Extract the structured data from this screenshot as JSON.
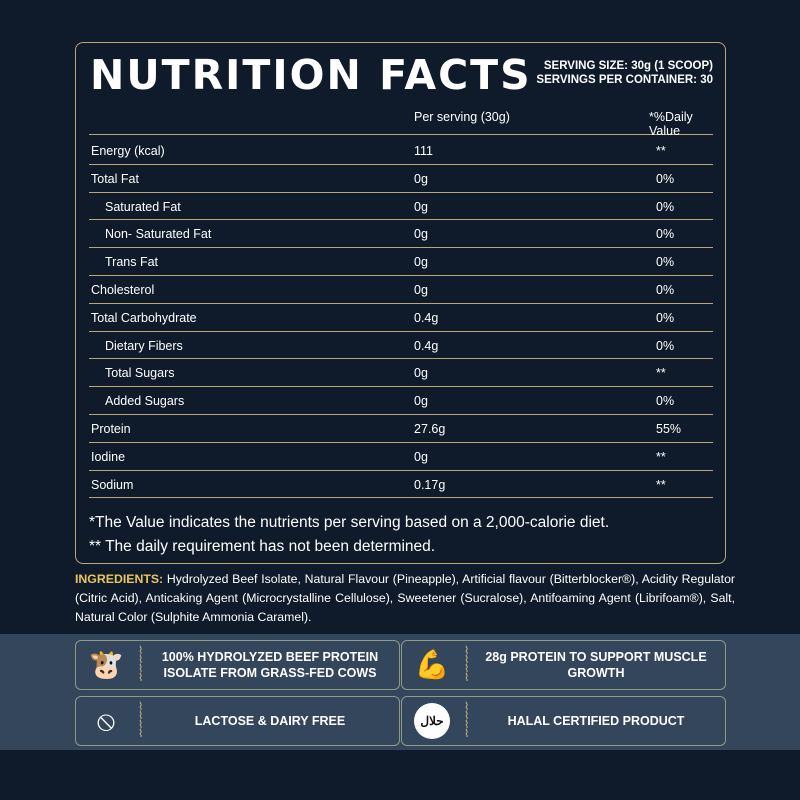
{
  "title": "NUTRITION FACTS",
  "serving_size": "SERVING SIZE: 30g (1 SCOOP)",
  "servings_per_container": "SERVINGS PER CONTAINER: 30",
  "headers": {
    "per_serving": "Per serving (30g)",
    "daily_value": "*%Daily Value"
  },
  "rows": [
    {
      "name": "Energy (kcal)",
      "amount": "111",
      "dv": "**"
    },
    {
      "name": "Total Fat",
      "amount": "0g",
      "dv": "0%"
    },
    {
      "name": "Saturated Fat",
      "amount": "0g",
      "dv": "0%"
    },
    {
      "name": "Non- Saturated Fat",
      "amount": "0g",
      "dv": "0%"
    },
    {
      "name": "Trans Fat",
      "amount": "0g",
      "dv": "0%"
    },
    {
      "name": "Cholesterol",
      "amount": "0g",
      "dv": "0%"
    },
    {
      "name": "Total Carbohydrate",
      "amount": "0.4g",
      "dv": "0%"
    },
    {
      "name": "Dietary Fibers",
      "amount": "0.4g",
      "dv": "0%"
    },
    {
      "name": "Total Sugars",
      "amount": "0g",
      "dv": "**"
    },
    {
      "name": "Added Sugars",
      "amount": "0g",
      "dv": "0%"
    },
    {
      "name": "Protein",
      "amount": "27.6g",
      "dv": "55%"
    },
    {
      "name": "Iodine",
      "amount": "0g",
      "dv": "**"
    },
    {
      "name": "Sodium",
      "amount": "0.17g",
      "dv": "**"
    }
  ],
  "notes": [
    "*The Value indicates the nutrients per serving based on a 2,000-calorie diet.",
    "** The daily requirement has not been determined."
  ],
  "ingredients": {
    "label": "INGREDIENTS:",
    "text": " Hydrolyzed Beef Isolate, Natural Flavour (Pineapple), Artificial flavour (Bitterblocker®), Acidity Regulator (Citric Acid), Anticaking Agent (Microcrystalline Cellulose), Sweetener (Sucralose), Antifoaming Agent (Librifoam®), Salt, Natural Color (Sulphite Ammonia Caramel)."
  },
  "features": [
    {
      "icon": "cow-icon",
      "glyph": "🐮",
      "text": "100% HYDROLYZED BEEF PROTEIN ISOLATE FROM GRASS-FED COWS"
    },
    {
      "icon": "muscle-arm-icon",
      "glyph": "💪",
      "text": "28g PROTEIN TO SUPPORT MUSCLE GROWTH"
    },
    {
      "icon": "no-milk-icon",
      "glyph": "⦸",
      "text": "LACTOSE & DAIRY FREE"
    },
    {
      "icon": "halal-icon",
      "glyph": "حلال",
      "text": "HALAL CERTIFIED PRODUCT"
    }
  ],
  "colors": {
    "background": "#0f1b2a",
    "band": "#34465b",
    "border": "#b7a878",
    "ingredients_label": "#e8c65a"
  }
}
